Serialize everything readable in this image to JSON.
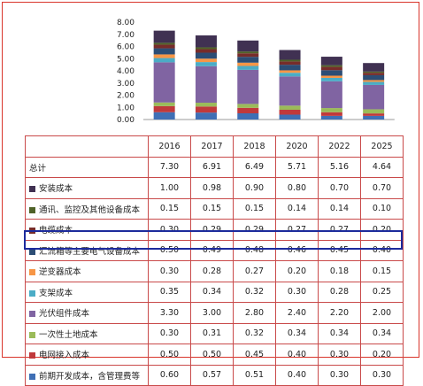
{
  "chart_data": {
    "type": "bar",
    "stacked": true,
    "categories": [
      "2016",
      "2017",
      "2018",
      "2020",
      "2022",
      "2025"
    ],
    "ylim": [
      0,
      8
    ],
    "yticks": [
      "0.00",
      "1.00",
      "2.00",
      "3.00",
      "4.00",
      "5.00",
      "6.00",
      "7.00",
      "8.00"
    ],
    "grid": false,
    "legend": "table-rows",
    "total": {
      "name": "总计",
      "values": [
        "7.30",
        "6.91",
        "6.49",
        "5.71",
        "5.16",
        "4.64"
      ]
    },
    "series": [
      {
        "name": "前期开发成本，含管理费等",
        "color": "#3f6fb5",
        "values": [
          0.6,
          0.57,
          0.51,
          0.4,
          0.3,
          0.3
        ],
        "labels": [
          "0.60",
          "0.57",
          "0.51",
          "0.40",
          "0.30",
          "0.30"
        ]
      },
      {
        "name": "电网接入成本",
        "color": "#c0393b",
        "values": [
          0.5,
          0.5,
          0.45,
          0.4,
          0.3,
          0.2
        ],
        "labels": [
          "0.50",
          "0.50",
          "0.45",
          "0.40",
          "0.30",
          "0.20"
        ]
      },
      {
        "name": "一次性土地成本",
        "color": "#9bbb59",
        "values": [
          0.3,
          0.31,
          0.32,
          0.34,
          0.34,
          0.34
        ],
        "labels": [
          "0.30",
          "0.31",
          "0.32",
          "0.34",
          "0.34",
          "0.34"
        ]
      },
      {
        "name": "光伏组件成本",
        "color": "#8064a2",
        "values": [
          3.3,
          3.0,
          2.8,
          2.4,
          2.2,
          2.0
        ],
        "labels": [
          "3.30",
          "3.00",
          "2.80",
          "2.40",
          "2.20",
          "2.00"
        ]
      },
      {
        "name": "支架成本",
        "color": "#4bacc6",
        "values": [
          0.35,
          0.34,
          0.32,
          0.3,
          0.28,
          0.25
        ],
        "labels": [
          "0.35",
          "0.34",
          "0.32",
          "0.30",
          "0.28",
          "0.25"
        ]
      },
      {
        "name": "逆变器成本",
        "color": "#f79646",
        "values": [
          0.3,
          0.28,
          0.27,
          0.2,
          0.18,
          0.15
        ],
        "labels": [
          "0.30",
          "0.28",
          "0.27",
          "0.20",
          "0.18",
          "0.15"
        ]
      },
      {
        "name": "汇流箱等主要电气设备成本",
        "color": "#2c4d75",
        "values": [
          0.5,
          0.49,
          0.48,
          0.46,
          0.45,
          0.4
        ],
        "labels": [
          "0.50",
          "0.49",
          "0.48",
          "0.46",
          "0.45",
          "0.40"
        ]
      },
      {
        "name": "电缆成本",
        "color": "#772c2a",
        "values": [
          0.3,
          0.29,
          0.29,
          0.27,
          0.27,
          0.2
        ],
        "labels": [
          "0.30",
          "0.29",
          "0.29",
          "0.27",
          "0.27",
          "0.20"
        ]
      },
      {
        "name": "通讯、监控及其他设备成本",
        "color": "#4f6228",
        "values": [
          0.15,
          0.15,
          0.15,
          0.14,
          0.14,
          0.1
        ],
        "labels": [
          "0.15",
          "0.15",
          "0.15",
          "0.14",
          "0.14",
          "0.10"
        ]
      },
      {
        "name": "安装成本",
        "color": "#403152",
        "values": [
          1.0,
          0.98,
          0.9,
          0.8,
          0.7,
          0.7
        ],
        "labels": [
          "1.00",
          "0.98",
          "0.90",
          "0.80",
          "0.70",
          "0.70"
        ]
      }
    ]
  }
}
